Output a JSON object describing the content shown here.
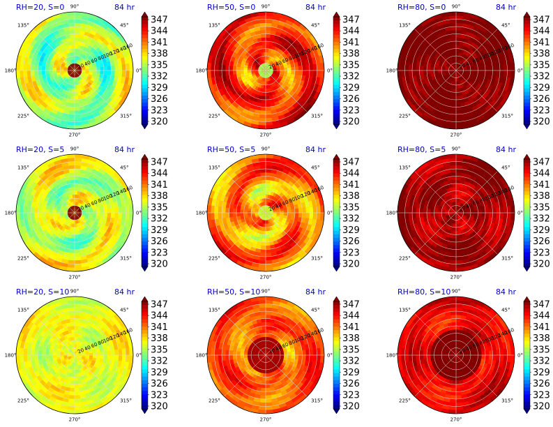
{
  "chart_data": {
    "type": "heatmap",
    "projection": "polar",
    "grid": true,
    "colormap": "jet",
    "color_range": [
      320,
      350
    ],
    "colorbar_ticks": [
      "347",
      "344",
      "341",
      "338",
      "335",
      "332",
      "329",
      "326",
      "323",
      "320"
    ],
    "angle_labels": [
      "90°",
      "45°",
      "0°",
      "315°",
      "270°",
      "225°",
      "180°",
      "135°"
    ],
    "radial_labels": [
      "20",
      "40",
      "60",
      "80",
      "100",
      "120",
      "140",
      "160"
    ],
    "time_label": "84 hr",
    "panels": [
      {
        "title": "RH=20, S=0",
        "mean": 337.0,
        "core": 350,
        "core_r": 0.12,
        "spiral": 1.0,
        "ring_r": 0.55
      },
      {
        "title": "RH=50, S=0",
        "mean": 345.5,
        "core": 336,
        "core_r": 0.1,
        "spiral": 1.0,
        "ring_r": 0.35
      },
      {
        "title": "RH=80, S=0",
        "mean": 350.0,
        "core": 350,
        "core_r": 0.0,
        "spiral": 0.0,
        "ring_r": 0.0
      },
      {
        "title": "RH=20, S=5",
        "mean": 338.0,
        "core": 350,
        "core_r": 0.14,
        "spiral": 0.8,
        "ring_r": 0.5
      },
      {
        "title": "RH=50, S=5",
        "mean": 343.0,
        "core": 337,
        "core_r": 0.12,
        "spiral": 1.0,
        "ring_r": 0.4
      },
      {
        "title": "RH=80, S=5",
        "mean": 349.0,
        "core": 350,
        "core_r": 0.0,
        "spiral": 0.3,
        "ring_r": 0.3
      },
      {
        "title": "RH=20, S=10",
        "mean": 338.5,
        "core": 341,
        "core_r": 0.0,
        "spiral": 0.3,
        "ring_r": 0.5
      },
      {
        "title": "RH=50, S=10",
        "mean": 344.0,
        "core": 349,
        "core_r": 0.3,
        "spiral": 0.6,
        "ring_r": 0.4
      },
      {
        "title": "RH=80, S=10",
        "mean": 347.0,
        "core": 350,
        "core_r": 0.45,
        "spiral": 0.3,
        "ring_r": 0.6
      }
    ]
  }
}
